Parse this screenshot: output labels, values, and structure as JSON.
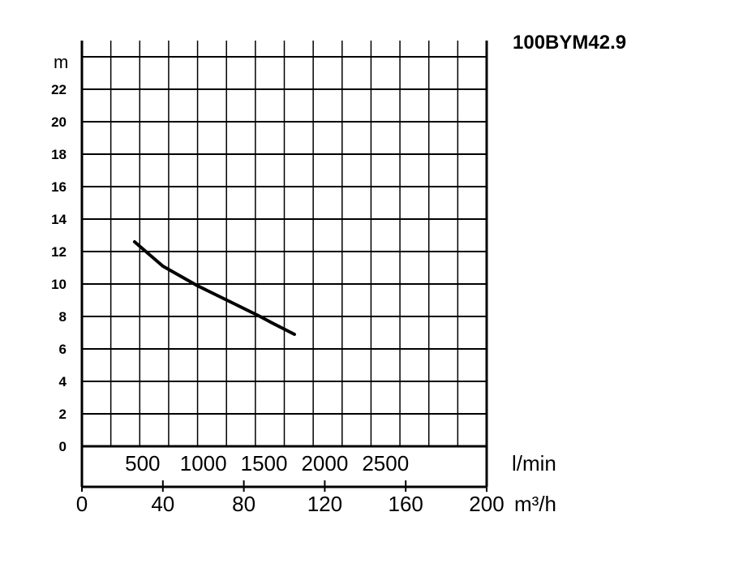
{
  "chart_data": {
    "type": "line",
    "title": "100BYM42.9",
    "ylabel": "m",
    "y_ticks": [
      "0",
      "2",
      "4",
      "6",
      "8",
      "10",
      "12",
      "14",
      "16",
      "18",
      "20",
      "22"
    ],
    "ylim": [
      0,
      24
    ],
    "x_axes": [
      {
        "unit": "l/min",
        "ticks": [
          "500",
          "1000",
          "1500",
          "2000",
          "2500"
        ],
        "tick_values": [
          500,
          1000,
          1500,
          2000,
          2500
        ]
      },
      {
        "unit": "m³/h",
        "ticks": [
          "0",
          "40",
          "80",
          "120",
          "160",
          "200"
        ],
        "tick_values": [
          0,
          40,
          80,
          120,
          160,
          200
        ]
      }
    ],
    "xlim": [
      0,
      200
    ],
    "grid": true,
    "series": [
      {
        "x": [
          26,
          40,
          57,
          75,
          88,
          94,
          105
        ],
        "y": [
          12.6,
          11.1,
          9.9,
          8.8,
          8.0,
          7.6,
          6.9
        ]
      }
    ]
  }
}
